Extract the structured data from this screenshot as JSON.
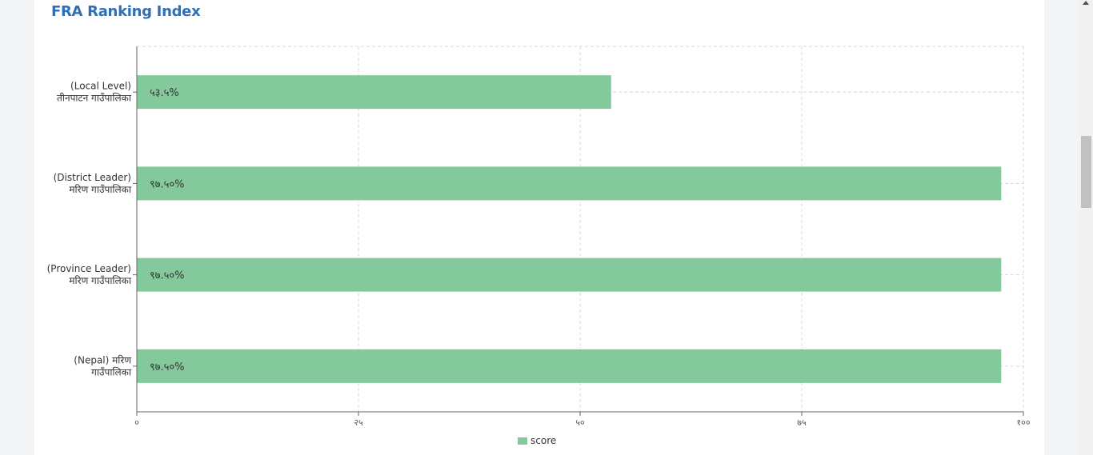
{
  "title": "FRA Ranking Index",
  "legend": {
    "label": "score"
  },
  "colors": {
    "bar": "#84c99c",
    "title": "#2f6fb7",
    "grid": "#d8d8d8",
    "axis": "#666666"
  },
  "chart_data": {
    "type": "bar",
    "orientation": "horizontal",
    "title": "FRA Ranking Index",
    "xlabel": "",
    "ylabel": "",
    "xlim": [
      0,
      100
    ],
    "grid": true,
    "legend_position": "bottom",
    "x_ticks": [
      {
        "value": 0,
        "label": "०"
      },
      {
        "value": 25,
        "label": "२५"
      },
      {
        "value": 50,
        "label": "५०"
      },
      {
        "value": 75,
        "label": "७५"
      },
      {
        "value": 100,
        "label": "१००"
      }
    ],
    "categories": [
      [
        "(Local Level)",
        "तीनपाटन गाउँपालिका"
      ],
      [
        "(District Leader)",
        "मरिण गाउँपालिका"
      ],
      [
        "(Province Leader)",
        "मरिण गाउँपालिका"
      ],
      [
        "(Nepal) मरिण",
        "गाउँपालिका"
      ]
    ],
    "series": [
      {
        "name": "score",
        "values": [
          53.5,
          97.5,
          97.5,
          97.5
        ],
        "data_labels": [
          "५३.५%",
          "९७.५०%",
          "९७.५०%",
          "९७.५०%"
        ]
      }
    ]
  }
}
